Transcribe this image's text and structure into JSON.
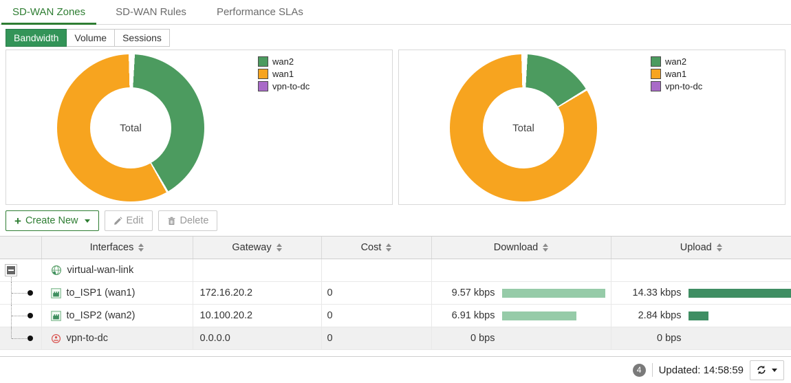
{
  "tabs": [
    {
      "label": "SD-WAN Zones",
      "active": true
    },
    {
      "label": "SD-WAN Rules",
      "active": false
    },
    {
      "label": "Performance SLAs",
      "active": false
    }
  ],
  "subtabs": [
    {
      "label": "Bandwidth",
      "active": true
    },
    {
      "label": "Volume",
      "active": false
    },
    {
      "label": "Sessions",
      "active": false
    }
  ],
  "chart_data": [
    {
      "type": "donut",
      "id": "download-bandwidth-by-member",
      "center_label": "Total",
      "legend_position": "right",
      "unit": "kbps",
      "series": [
        {
          "name": "wan2",
          "value": 6.91,
          "color": "#4c9b5f"
        },
        {
          "name": "wan1",
          "value": 9.57,
          "color": "#f7a41f"
        },
        {
          "name": "vpn-to-dc",
          "value": 0,
          "color": "#a96bc8"
        }
      ]
    },
    {
      "type": "donut",
      "id": "upload-bandwidth-by-member",
      "center_label": "Total",
      "legend_position": "right",
      "unit": "kbps",
      "series": [
        {
          "name": "wan2",
          "value": 2.84,
          "color": "#4c9b5f"
        },
        {
          "name": "wan1",
          "value": 14.33,
          "color": "#f7a41f"
        },
        {
          "name": "vpn-to-dc",
          "value": 0,
          "color": "#a96bc8"
        }
      ]
    }
  ],
  "toolbar": {
    "create_label": "Create New",
    "edit_label": "Edit",
    "delete_label": "Delete"
  },
  "table": {
    "headers": {
      "interfaces": "Interfaces",
      "gateway": "Gateway",
      "cost": "Cost",
      "download": "Download",
      "upload": "Upload"
    },
    "rows": [
      {
        "name": "virtual-wan-link",
        "icon": "sdwan-zone-icon",
        "gateway": "",
        "cost": "",
        "download": null,
        "upload": null
      },
      {
        "name": "to_ISP1 (wan1)",
        "icon": "ethernet-interface-icon",
        "gateway": "172.16.20.2",
        "cost": "0",
        "download": {
          "label": "9.57 kbps",
          "value": 9.57
        },
        "upload": {
          "label": "14.33 kbps",
          "value": 14.33
        }
      },
      {
        "name": "to_ISP2 (wan2)",
        "icon": "ethernet-interface-icon",
        "gateway": "10.100.20.2",
        "cost": "0",
        "download": {
          "label": "6.91 kbps",
          "value": 6.91
        },
        "upload": {
          "label": "2.84 kbps",
          "value": 2.84
        }
      },
      {
        "name": "vpn-to-dc",
        "icon": "tunnel-interface-icon",
        "gateway": "0.0.0.0",
        "cost": "0",
        "download": {
          "label": "0 bps",
          "value": 0
        },
        "upload": {
          "label": "0 bps",
          "value": 0
        }
      }
    ]
  },
  "footer": {
    "count": "4",
    "updated": "Updated: 14:58:59"
  },
  "colors": {
    "accent_green": "#2e7d32",
    "subtab_green": "#339458",
    "slice_green": "#4c9b5f",
    "slice_orange": "#f7a41f",
    "slice_purple": "#a96bc8",
    "bar_download": "#96cba8",
    "bar_upload": "#3f8e63"
  }
}
